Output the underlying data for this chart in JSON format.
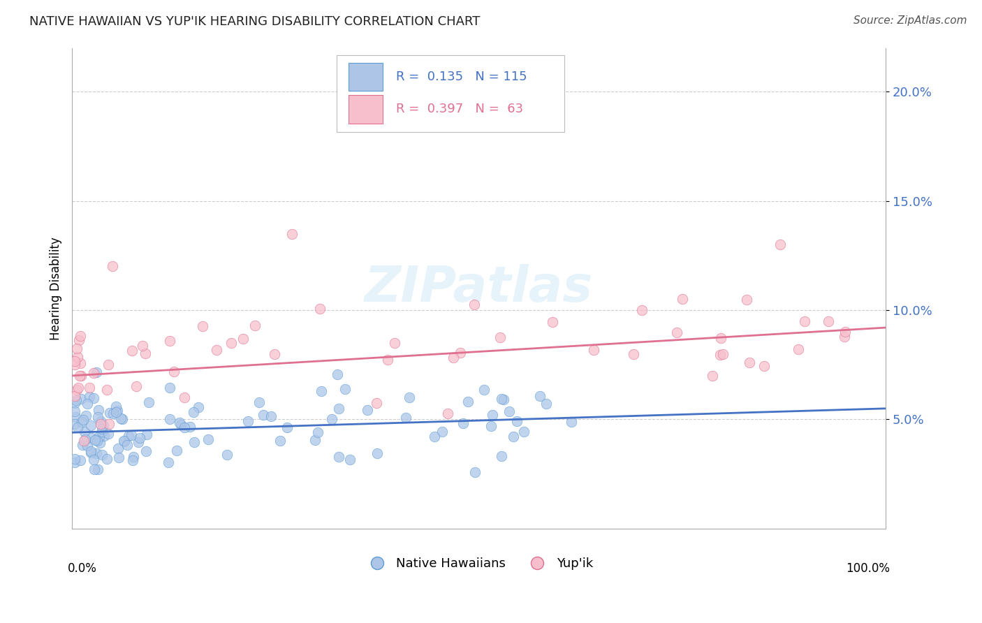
{
  "title": "NATIVE HAWAIIAN VS YUP'IK HEARING DISABILITY CORRELATION CHART",
  "source": "Source: ZipAtlas.com",
  "ylabel": "Hearing Disability",
  "xlim": [
    0,
    100
  ],
  "ylim": [
    0,
    22
  ],
  "yticks": [
    5,
    10,
    15,
    20
  ],
  "ytick_labels": [
    "5.0%",
    "10.0%",
    "15.0%",
    "20.0%"
  ],
  "blue_color": "#adc6e8",
  "blue_edge_color": "#5b9bd5",
  "pink_color": "#f7bfcc",
  "pink_edge_color": "#e07090",
  "blue_line_color": "#4472c4",
  "pink_line_color": "#e07090",
  "legend_r_blue": "0.135",
  "legend_n_blue": "115",
  "legend_r_pink": "0.397",
  "legend_n_pink": "63",
  "watermark": "ZIPatlas",
  "blue_trend_start": 4.4,
  "blue_trend_end": 5.5,
  "pink_trend_start": 7.0,
  "pink_trend_end": 9.2,
  "title_fontsize": 13,
  "source_fontsize": 11,
  "ytick_fontsize": 13,
  "ylabel_fontsize": 12
}
